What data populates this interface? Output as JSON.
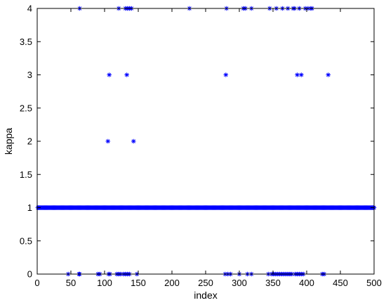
{
  "chart_data": {
    "type": "scatter",
    "title": "",
    "xlabel": "index",
    "ylabel": "kappa",
    "xlim": [
      0,
      500
    ],
    "ylim": [
      0,
      4
    ],
    "xticks": [
      "0",
      "50",
      "100",
      "150",
      "200",
      "250",
      "300",
      "350",
      "400",
      "450",
      "500"
    ],
    "yticks": [
      "0",
      "0.5",
      "1",
      "1.5",
      "2",
      "2.5",
      "3",
      "3.5",
      "4"
    ],
    "grid": false,
    "legend": "none",
    "marker": "asterisk",
    "marker_color": "#0000ff",
    "series": [
      {
        "points": {
          "kappa_4": [
            63,
            121,
            131,
            134,
            137,
            140,
            226,
            281,
            306,
            309,
            318,
            345,
            355,
            364,
            372,
            380,
            382,
            389,
            398,
            402,
            406,
            408
          ],
          "kappa_3": [
            107,
            133,
            280,
            386,
            392,
            432
          ],
          "kappa_2": [
            105,
            143
          ],
          "kappa_0": [
            46,
            62,
            63,
            90,
            93,
            106,
            108,
            118,
            121,
            124,
            128,
            131,
            134,
            137,
            148,
            279,
            283,
            287,
            300,
            312,
            318,
            343,
            348,
            351,
            354,
            357,
            360,
            363,
            366,
            369,
            372,
            375,
            378,
            383,
            386,
            389,
            392,
            395,
            423,
            426
          ],
          "kappa_1_ranges": [
            [
              1,
              500
            ]
          ]
        }
      }
    ]
  }
}
